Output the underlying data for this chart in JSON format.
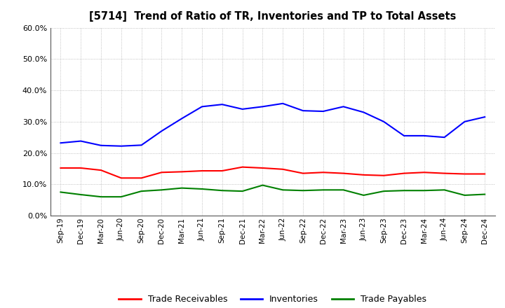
{
  "title": "[5714]  Trend of Ratio of TR, Inventories and TP to Total Assets",
  "x_labels": [
    "Sep-19",
    "Dec-19",
    "Mar-20",
    "Jun-20",
    "Sep-20",
    "Dec-20",
    "Mar-21",
    "Jun-21",
    "Sep-21",
    "Dec-21",
    "Mar-22",
    "Jun-22",
    "Sep-22",
    "Dec-22",
    "Mar-23",
    "Jun-23",
    "Sep-23",
    "Dec-23",
    "Mar-24",
    "Jun-24",
    "Sep-24",
    "Dec-24"
  ],
  "trade_receivables": [
    0.152,
    0.152,
    0.145,
    0.12,
    0.12,
    0.138,
    0.14,
    0.143,
    0.143,
    0.155,
    0.152,
    0.148,
    0.135,
    0.138,
    0.135,
    0.13,
    0.128,
    0.135,
    0.138,
    0.135,
    0.133,
    0.133
  ],
  "inventories": [
    0.232,
    0.238,
    0.224,
    0.222,
    0.225,
    0.27,
    0.31,
    0.348,
    0.355,
    0.34,
    0.348,
    0.358,
    0.335,
    0.333,
    0.348,
    0.33,
    0.3,
    0.255,
    0.255,
    0.25,
    0.3,
    0.315
  ],
  "trade_payables": [
    0.075,
    0.067,
    0.06,
    0.06,
    0.078,
    0.082,
    0.088,
    0.085,
    0.08,
    0.078,
    0.097,
    0.082,
    0.08,
    0.082,
    0.082,
    0.065,
    0.078,
    0.08,
    0.08,
    0.082,
    0.065,
    0.068
  ],
  "tr_color": "#ff0000",
  "inv_color": "#0000ff",
  "tp_color": "#008000",
  "ylim": [
    0.0,
    0.6
  ],
  "yticks": [
    0.0,
    0.1,
    0.2,
    0.3,
    0.4,
    0.5,
    0.6
  ],
  "legend_labels": [
    "Trade Receivables",
    "Inventories",
    "Trade Payables"
  ],
  "background_color": "#ffffff",
  "grid_color": "#b0b0b0"
}
